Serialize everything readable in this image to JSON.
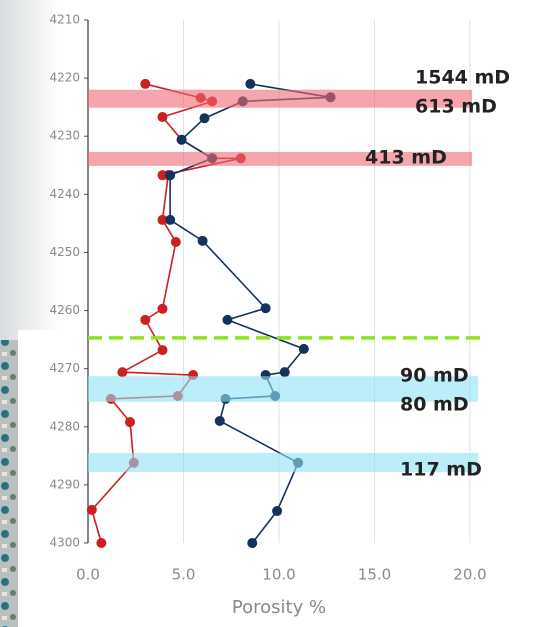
{
  "chart_data": {
    "type": "line",
    "x_label": "Porosity %",
    "xlim": [
      0,
      20
    ],
    "xticks": [
      {
        "value": 0,
        "label": "0.0"
      },
      {
        "value": 5,
        "label": "5.0"
      },
      {
        "value": 10,
        "label": "10.0"
      },
      {
        "value": 15,
        "label": "15.0"
      },
      {
        "value": 20,
        "label": "20.0"
      }
    ],
    "ylim": [
      4210,
      4300
    ],
    "yticks": [
      4210,
      4220,
      4230,
      4240,
      4250,
      4260,
      4270,
      4280,
      4290,
      4300
    ],
    "y_inverted": true,
    "grid": true,
    "series": [
      {
        "color": "#cc1f1f",
        "x": [
          3.0,
          5.9,
          6.5,
          3.9,
          4.9,
          6.5,
          8.0,
          3.9,
          4.2,
          3.9,
          4.6,
          3.9,
          3.0,
          3.9,
          1.8,
          5.5,
          4.7,
          1.2,
          2.2,
          2.4,
          0.2,
          0.7
        ],
        "values": [
          4221,
          4223.4,
          4224,
          4226.7,
          4230.6,
          4233.8,
          4233.8,
          4236.7,
          4236.7,
          4244.4,
          4248.2,
          4259.7,
          4261.6,
          4266.8,
          4270.6,
          4271.1,
          4274.7,
          4275.2,
          4279.2,
          4286.2,
          4294.3,
          4300
        ]
      },
      {
        "color": "#14325c",
        "x": [
          8.5,
          12.7,
          8.1,
          6.1,
          4.9,
          6.5,
          4.3,
          4.3,
          6.0,
          9.3,
          7.3,
          11.3,
          10.3,
          9.3,
          9.8,
          7.2,
          6.9,
          11.0,
          9.9,
          8.6
        ],
        "values": [
          4221,
          4223.3,
          4224,
          4226.9,
          4230.6,
          4233.8,
          4236.7,
          4244.4,
          4248,
          4259.6,
          4261.6,
          4266.6,
          4270.6,
          4271.1,
          4274.7,
          4275.2,
          4279,
          4286.2,
          4294.5,
          4300
        ]
      }
    ],
    "bands": [
      {
        "range": [
          4222,
          4225.1
        ],
        "color": "#ee6b74"
      },
      {
        "range": [
          4232.7,
          4235.1
        ],
        "color": "#ee6b74"
      },
      {
        "range": [
          4271.3,
          4275.7
        ],
        "color": "#8fe3f5"
      },
      {
        "range": [
          4284.5,
          4287.8
        ],
        "color": "#8fe3f5"
      }
    ],
    "threshold": {
      "value": 4264.7,
      "color": "#8ee21b"
    },
    "annotations": [
      "1544 mD",
      "613 mD",
      "413 mD",
      "90 mD",
      "80 mD",
      "117 mD"
    ]
  }
}
